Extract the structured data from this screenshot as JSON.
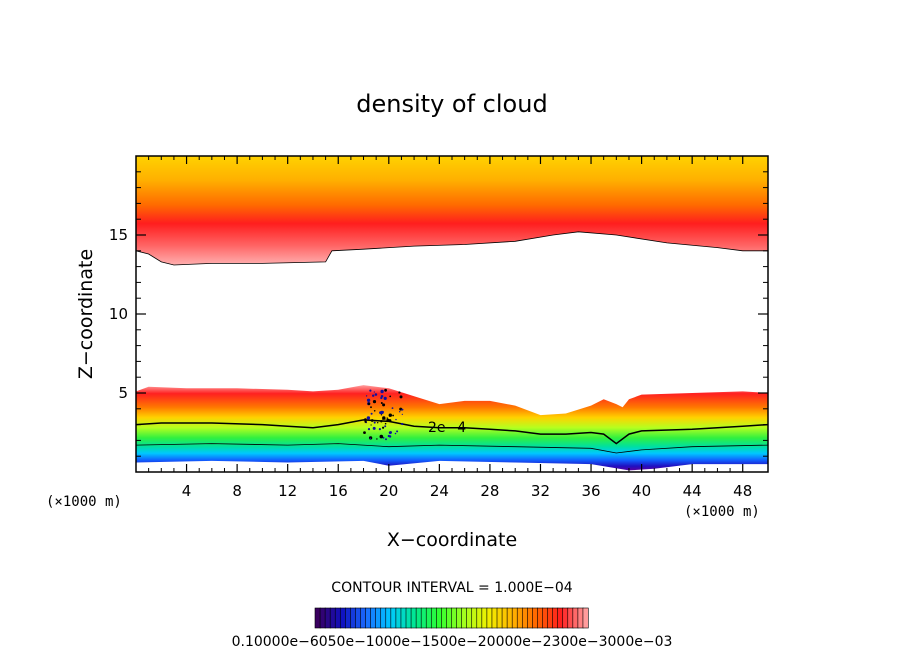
{
  "chart_data": {
    "type": "heatmap",
    "title": "density of cloud",
    "xlabel": "X−coordinate",
    "ylabel": "Z−coordinate",
    "x_unit_left": "(×1000 m)",
    "x_unit_right": "(×1000 m)",
    "xlim": [
      0,
      50
    ],
    "ylim": [
      0,
      20
    ],
    "x_ticks": [
      4,
      8,
      12,
      16,
      20,
      24,
      28,
      32,
      36,
      40,
      44,
      48
    ],
    "x_tick_labels": [
      "4",
      "8",
      "12",
      "16",
      "20",
      "24",
      "28",
      "32",
      "36",
      "40",
      "44",
      "48"
    ],
    "y_ticks": [
      5,
      10,
      15
    ],
    "y_tick_labels": [
      "5",
      "10",
      "15"
    ],
    "contour_interval": "CONTOUR INTERVAL = 1.000E−04",
    "contour_label": "2e−4",
    "colorbar_labels_text": "0.10000e−6050e−1000e−1500e−20000e−2300e−3000e−03",
    "upper_layer_bottom": [
      [
        0,
        14.0
      ],
      [
        1,
        13.8
      ],
      [
        2,
        13.3
      ],
      [
        3,
        13.1
      ],
      [
        6,
        13.2
      ],
      [
        10,
        13.2
      ],
      [
        15,
        13.3
      ],
      [
        15.5,
        14.0
      ],
      [
        18,
        14.1
      ],
      [
        22,
        14.3
      ],
      [
        26,
        14.4
      ],
      [
        30,
        14.6
      ],
      [
        33,
        15.0
      ],
      [
        35,
        15.2
      ],
      [
        38,
        15.0
      ],
      [
        42,
        14.5
      ],
      [
        46,
        14.2
      ],
      [
        48,
        14.0
      ],
      [
        50,
        14.0
      ]
    ],
    "lower_layer_top": [
      [
        0,
        5.1
      ],
      [
        1,
        5.4
      ],
      [
        4,
        5.3
      ],
      [
        8,
        5.3
      ],
      [
        12,
        5.2
      ],
      [
        14,
        5.1
      ],
      [
        16,
        5.2
      ],
      [
        18,
        5.5
      ],
      [
        20,
        5.3
      ],
      [
        22,
        4.8
      ],
      [
        24,
        4.3
      ],
      [
        26,
        4.5
      ],
      [
        28,
        4.5
      ],
      [
        30,
        4.2
      ],
      [
        32,
        3.6
      ],
      [
        34,
        3.7
      ],
      [
        36,
        4.2
      ],
      [
        37,
        4.6
      ],
      [
        38,
        4.3
      ],
      [
        38.5,
        4.1
      ],
      [
        39,
        4.6
      ],
      [
        40,
        4.9
      ],
      [
        44,
        5.0
      ],
      [
        48,
        5.1
      ],
      [
        50,
        5.0
      ]
    ],
    "contour_2e4": [
      [
        0,
        3.0
      ],
      [
        2,
        3.1
      ],
      [
        6,
        3.1
      ],
      [
        10,
        3.0
      ],
      [
        12,
        2.9
      ],
      [
        14,
        2.8
      ],
      [
        16,
        3.0
      ],
      [
        18,
        3.3
      ],
      [
        20,
        3.2
      ],
      [
        22,
        2.9
      ],
      [
        24,
        2.8
      ],
      [
        26,
        2.8
      ],
      [
        28,
        2.7
      ],
      [
        30,
        2.6
      ],
      [
        32,
        2.4
      ],
      [
        34,
        2.4
      ],
      [
        36,
        2.5
      ],
      [
        37,
        2.4
      ],
      [
        38,
        1.8
      ],
      [
        39,
        2.4
      ],
      [
        40,
        2.6
      ],
      [
        44,
        2.7
      ],
      [
        48,
        2.9
      ],
      [
        50,
        3.0
      ]
    ],
    "contour_1e4": [
      [
        0,
        1.7
      ],
      [
        6,
        1.8
      ],
      [
        12,
        1.7
      ],
      [
        16,
        1.8
      ],
      [
        20,
        1.6
      ],
      [
        24,
        1.7
      ],
      [
        30,
        1.6
      ],
      [
        36,
        1.5
      ],
      [
        38,
        1.2
      ],
      [
        40,
        1.4
      ],
      [
        44,
        1.6
      ],
      [
        50,
        1.7
      ]
    ],
    "cloud_base": [
      [
        0,
        0.6
      ],
      [
        6,
        0.7
      ],
      [
        12,
        0.6
      ],
      [
        18,
        0.7
      ],
      [
        20,
        0.4
      ],
      [
        24,
        0.7
      ],
      [
        30,
        0.6
      ],
      [
        36,
        0.5
      ],
      [
        39,
        0.1
      ],
      [
        41,
        0.2
      ],
      [
        44,
        0.5
      ],
      [
        50,
        0.5
      ]
    ],
    "colormap": [
      "#3a0060",
      "#1010c0",
      "#1a6cff",
      "#00c8ff",
      "#00e890",
      "#30ff30",
      "#a0ff20",
      "#f0f000",
      "#ffb400",
      "#ff6400",
      "#ff1e1e",
      "#ff9c9c"
    ]
  }
}
